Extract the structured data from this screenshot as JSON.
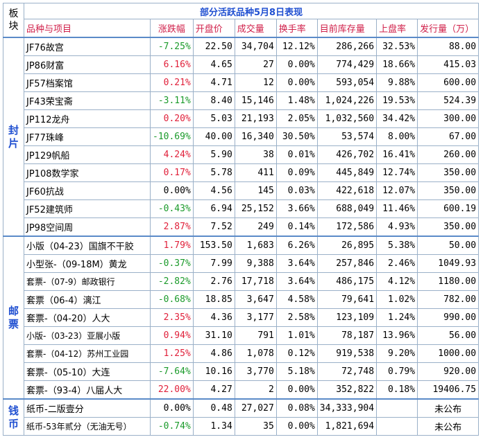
{
  "title": "部分活跃品种5月8日表现",
  "corner_label": "板块",
  "headers": [
    "品种与项目",
    "涨跌幅",
    "开盘价",
    "成交量",
    "换手率",
    "目前库存量",
    "上盘率",
    "发行量（万）"
  ],
  "groups": [
    {
      "category": "封片",
      "rows": [
        {
          "name": "JF76故宫",
          "change": "-7.25%",
          "dir": "neg",
          "open": "22.50",
          "volume": "34,704",
          "turnover": "12.12%",
          "stock": "286,266",
          "rate": "32.53%",
          "issue": "88.00"
        },
        {
          "name": "JP86财富",
          "change": "6.16%",
          "dir": "pos",
          "open": "4.65",
          "volume": "27",
          "turnover": "0.00%",
          "stock": "774,429",
          "rate": "18.66%",
          "issue": "415.03"
        },
        {
          "name": "JF57档案馆",
          "change": "0.21%",
          "dir": "pos",
          "open": "4.71",
          "volume": "12",
          "turnover": "0.00%",
          "stock": "593,054",
          "rate": "9.88%",
          "issue": "600.00"
        },
        {
          "name": "JF43荣宝斋",
          "change": "-3.11%",
          "dir": "neg",
          "open": "8.40",
          "volume": "15,146",
          "turnover": "1.48%",
          "stock": "1,024,226",
          "rate": "19.53%",
          "issue": "524.39"
        },
        {
          "name": "JP112龙舟",
          "change": "0.20%",
          "dir": "pos",
          "open": "5.03",
          "volume": "21,193",
          "turnover": "2.05%",
          "stock": "1,032,560",
          "rate": "34.42%",
          "issue": "300.00"
        },
        {
          "name": "JF77珠峰",
          "change": "-10.69%",
          "dir": "neg",
          "open": "40.00",
          "volume": "16,340",
          "turnover": "30.50%",
          "stock": "53,574",
          "rate": "8.00%",
          "issue": "67.00"
        },
        {
          "name": "JP129帆船",
          "change": "4.24%",
          "dir": "pos",
          "open": "5.90",
          "volume": "38",
          "turnover": "0.01%",
          "stock": "426,702",
          "rate": "16.41%",
          "issue": "260.00"
        },
        {
          "name": "JP108数学家",
          "change": "0.17%",
          "dir": "pos",
          "open": "5.78",
          "volume": "411",
          "turnover": "0.09%",
          "stock": "445,849",
          "rate": "12.74%",
          "issue": "350.00"
        },
        {
          "name": "JF60抗战",
          "change": "0.00%",
          "dir": "zero",
          "open": "4.56",
          "volume": "145",
          "turnover": "0.03%",
          "stock": "422,618",
          "rate": "12.07%",
          "issue": "350.00"
        },
        {
          "name": "JF52建筑师",
          "change": "-0.43%",
          "dir": "neg",
          "open": "6.94",
          "volume": "25,152",
          "turnover": "3.66%",
          "stock": "688,049",
          "rate": "11.46%",
          "issue": "600.19"
        },
        {
          "name": "JP98空间周",
          "change": "2.87%",
          "dir": "pos",
          "open": "7.52",
          "volume": "249",
          "turnover": "0.14%",
          "stock": "172,586",
          "rate": "4.93%",
          "issue": "350.00"
        }
      ]
    },
    {
      "category": "邮票",
      "rows": [
        {
          "name": "小版（04-23）国旗不干胶",
          "change": "1.79%",
          "dir": "pos",
          "open": "153.50",
          "volume": "1,683",
          "turnover": "6.26%",
          "stock": "26,895",
          "rate": "5.38%",
          "issue": "50.00"
        },
        {
          "name": "小型张-（09-18M）黄龙",
          "change": "-0.37%",
          "dir": "neg",
          "open": "7.99",
          "volume": "9,388",
          "turnover": "3.64%",
          "stock": "257,846",
          "rate": "2.46%",
          "issue": "1049.93"
        },
        {
          "name": "套票-（07-9）邮政银行",
          "change": "-2.82%",
          "dir": "neg",
          "open": "2.76",
          "volume": "17,718",
          "turnover": "3.64%",
          "stock": "486,175",
          "rate": "4.12%",
          "issue": "1180.00",
          "small": true
        },
        {
          "name": "套票（06-4）漓江",
          "change": "-0.68%",
          "dir": "neg",
          "open": "18.85",
          "volume": "3,647",
          "turnover": "4.58%",
          "stock": "79,641",
          "rate": "1.02%",
          "issue": "782.00"
        },
        {
          "name": "套票-（04-20）人大",
          "change": "2.35%",
          "dir": "pos",
          "open": "4.36",
          "volume": "3,177",
          "turnover": "2.58%",
          "stock": "123,109",
          "rate": "1.24%",
          "issue": "990.00"
        },
        {
          "name": "小版-（03-23）亚展小版",
          "change": "0.94%",
          "dir": "pos",
          "open": "31.10",
          "volume": "791",
          "turnover": "1.01%",
          "stock": "78,187",
          "rate": "13.96%",
          "issue": "56.00",
          "small": true
        },
        {
          "name": "套票-（04-12）苏州工业园",
          "change": "1.25%",
          "dir": "pos",
          "open": "4.86",
          "volume": "1,078",
          "turnover": "0.12%",
          "stock": "919,538",
          "rate": "9.20%",
          "issue": "1000.00",
          "small": true
        },
        {
          "name": "套票-（05-10）大连",
          "change": "-7.64%",
          "dir": "neg",
          "open": "10.16",
          "volume": "3,770",
          "turnover": "5.18%",
          "stock": "72,748",
          "rate": "0.79%",
          "issue": "920.00"
        },
        {
          "name": "套票-（93-4）八届人大",
          "change": "22.00%",
          "dir": "pos",
          "open": "4.27",
          "volume": "2",
          "turnover": "0.00%",
          "stock": "352,822",
          "rate": "0.18%",
          "issue": "19406.75"
        }
      ]
    },
    {
      "category": "钱币",
      "rows": [
        {
          "name": "纸币-二版壹分",
          "change": "0.00%",
          "dir": "zero",
          "open": "0.48",
          "volume": "27,027",
          "turnover": "0.08%",
          "stock": "34,333,904",
          "rate": "",
          "issue": "未公布",
          "issue_center": true
        },
        {
          "name": "纸币-53年贰分（无油无号）",
          "change": "-0.74%",
          "dir": "neg",
          "open": "1.34",
          "volume": "35",
          "turnover": "0.00%",
          "stock": "1,821,694",
          "rate": "",
          "issue": "未公布",
          "issue_center": true,
          "small": true
        }
      ]
    }
  ],
  "colors": {
    "title": "#1f4fd1",
    "header": "#d0204a",
    "up": "#e0203a",
    "down": "#1a9a2a",
    "border": "#9ab0c8"
  }
}
